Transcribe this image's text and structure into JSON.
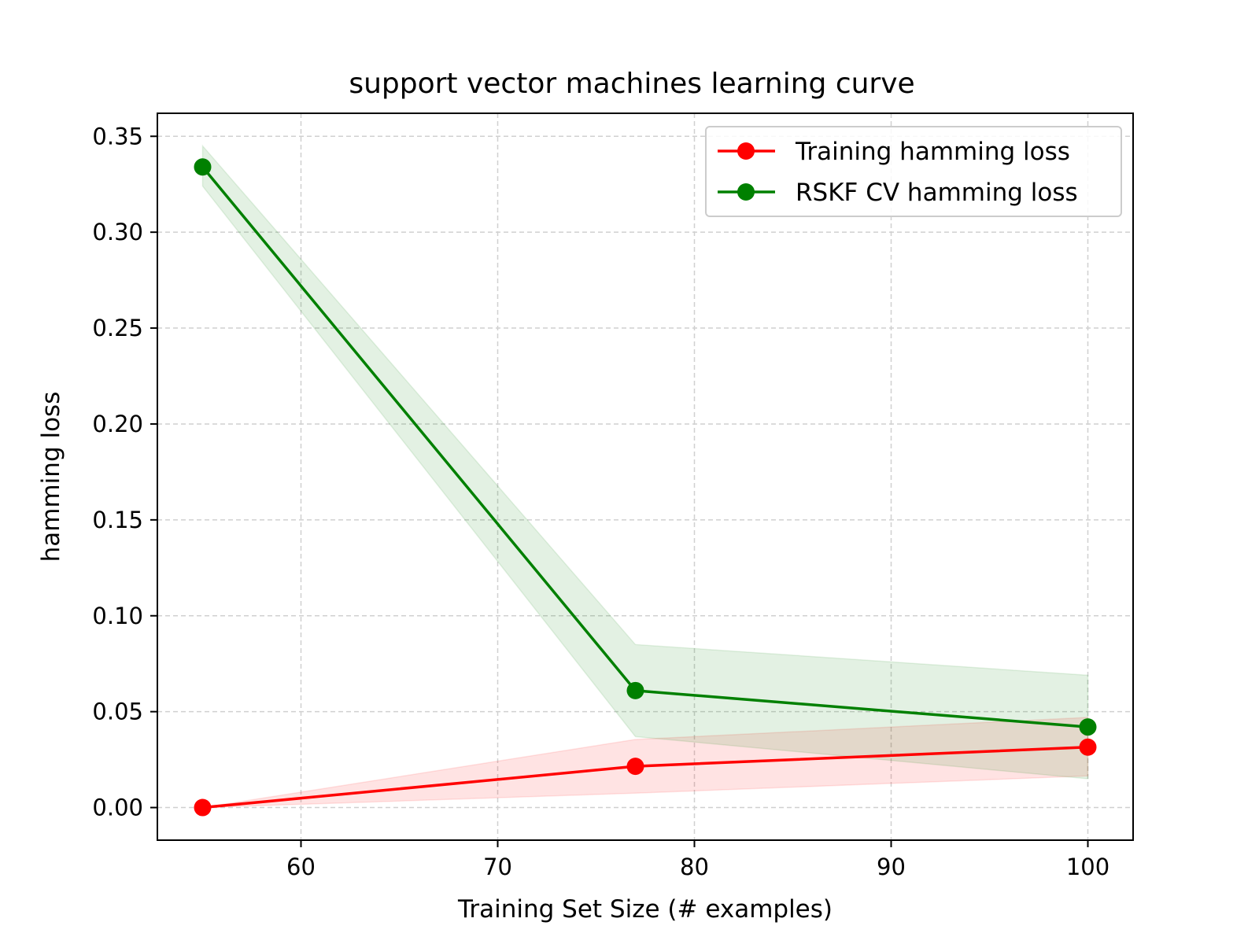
{
  "chart_data": {
    "type": "line",
    "title": "support vector machines learning curve",
    "xlabel": "Training Set Size (# examples)",
    "ylabel": "hamming loss",
    "xlim": [
      52.7,
      102.3
    ],
    "ylim": [
      -0.017,
      0.362
    ],
    "xticks": [
      60,
      70,
      80,
      90,
      100
    ],
    "yticks": [
      0.0,
      0.05,
      0.1,
      0.15,
      0.2,
      0.25,
      0.3,
      0.35
    ],
    "xtick_labels": [
      "60",
      "70",
      "80",
      "90",
      "100"
    ],
    "ytick_labels": [
      "0.00",
      "0.05",
      "0.10",
      "0.15",
      "0.20",
      "0.25",
      "0.30",
      "0.35"
    ],
    "grid": true,
    "legend_position": "top-right",
    "x": [
      55,
      77,
      100
    ],
    "series": [
      {
        "name": "Training hamming loss",
        "color": "#ff0000",
        "fill_color": "#ff0000",
        "values": [
          0.0,
          0.0215,
          0.0315
        ],
        "band_lower": [
          0.0,
          0.0075,
          0.0165
        ],
        "band_upper": [
          0.0,
          0.0355,
          0.047
        ]
      },
      {
        "name": "RSKF CV hamming loss",
        "color": "#008000",
        "fill_color": "#008000",
        "values": [
          0.334,
          0.061,
          0.042
        ],
        "band_lower": [
          0.324,
          0.037,
          0.015
        ],
        "band_upper": [
          0.345,
          0.085,
          0.069
        ]
      }
    ]
  }
}
